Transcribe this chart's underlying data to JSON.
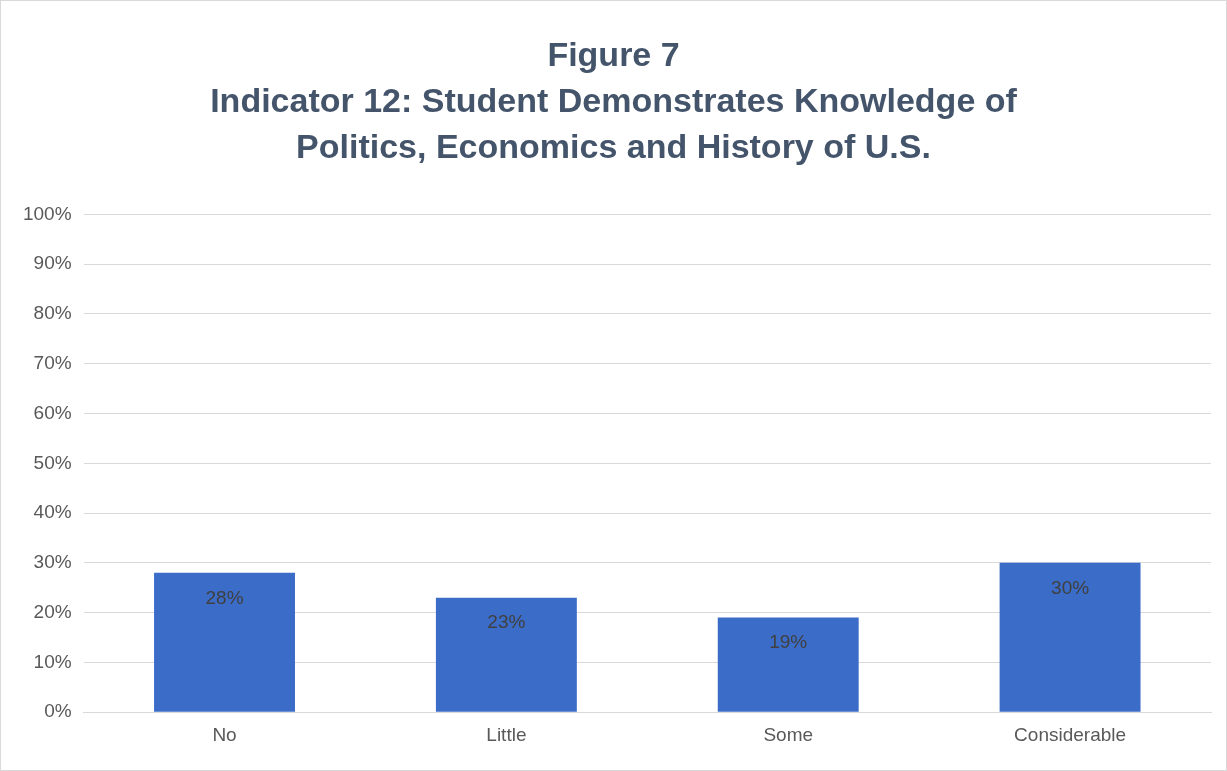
{
  "chart_data": {
    "type": "bar",
    "title": "Figure 7",
    "subtitle": "Indicator 12: Student Demonstrates Knowledge of Politics, Economics and History of U.S.",
    "categories": [
      "No",
      "Little",
      "Some",
      "Considerable"
    ],
    "values": [
      28,
      23,
      19,
      30
    ],
    "value_labels": [
      "28%",
      "23%",
      "19%",
      "30%"
    ],
    "color": "#3b6cc7",
    "ylim": [
      0,
      100
    ],
    "yticks": [
      {
        "value": 0,
        "label": "0%"
      },
      {
        "value": 10,
        "label": "10%"
      },
      {
        "value": 20,
        "label": "20%"
      },
      {
        "value": 30,
        "label": "30%"
      },
      {
        "value": 40,
        "label": "40%"
      },
      {
        "value": 50,
        "label": "50%"
      },
      {
        "value": 60,
        "label": "60%"
      },
      {
        "value": 70,
        "label": "70%"
      },
      {
        "value": 80,
        "label": "80%"
      },
      {
        "value": 90,
        "label": "90%"
      },
      {
        "value": 100,
        "label": "100%"
      }
    ],
    "grid": "y",
    "legend": false
  }
}
